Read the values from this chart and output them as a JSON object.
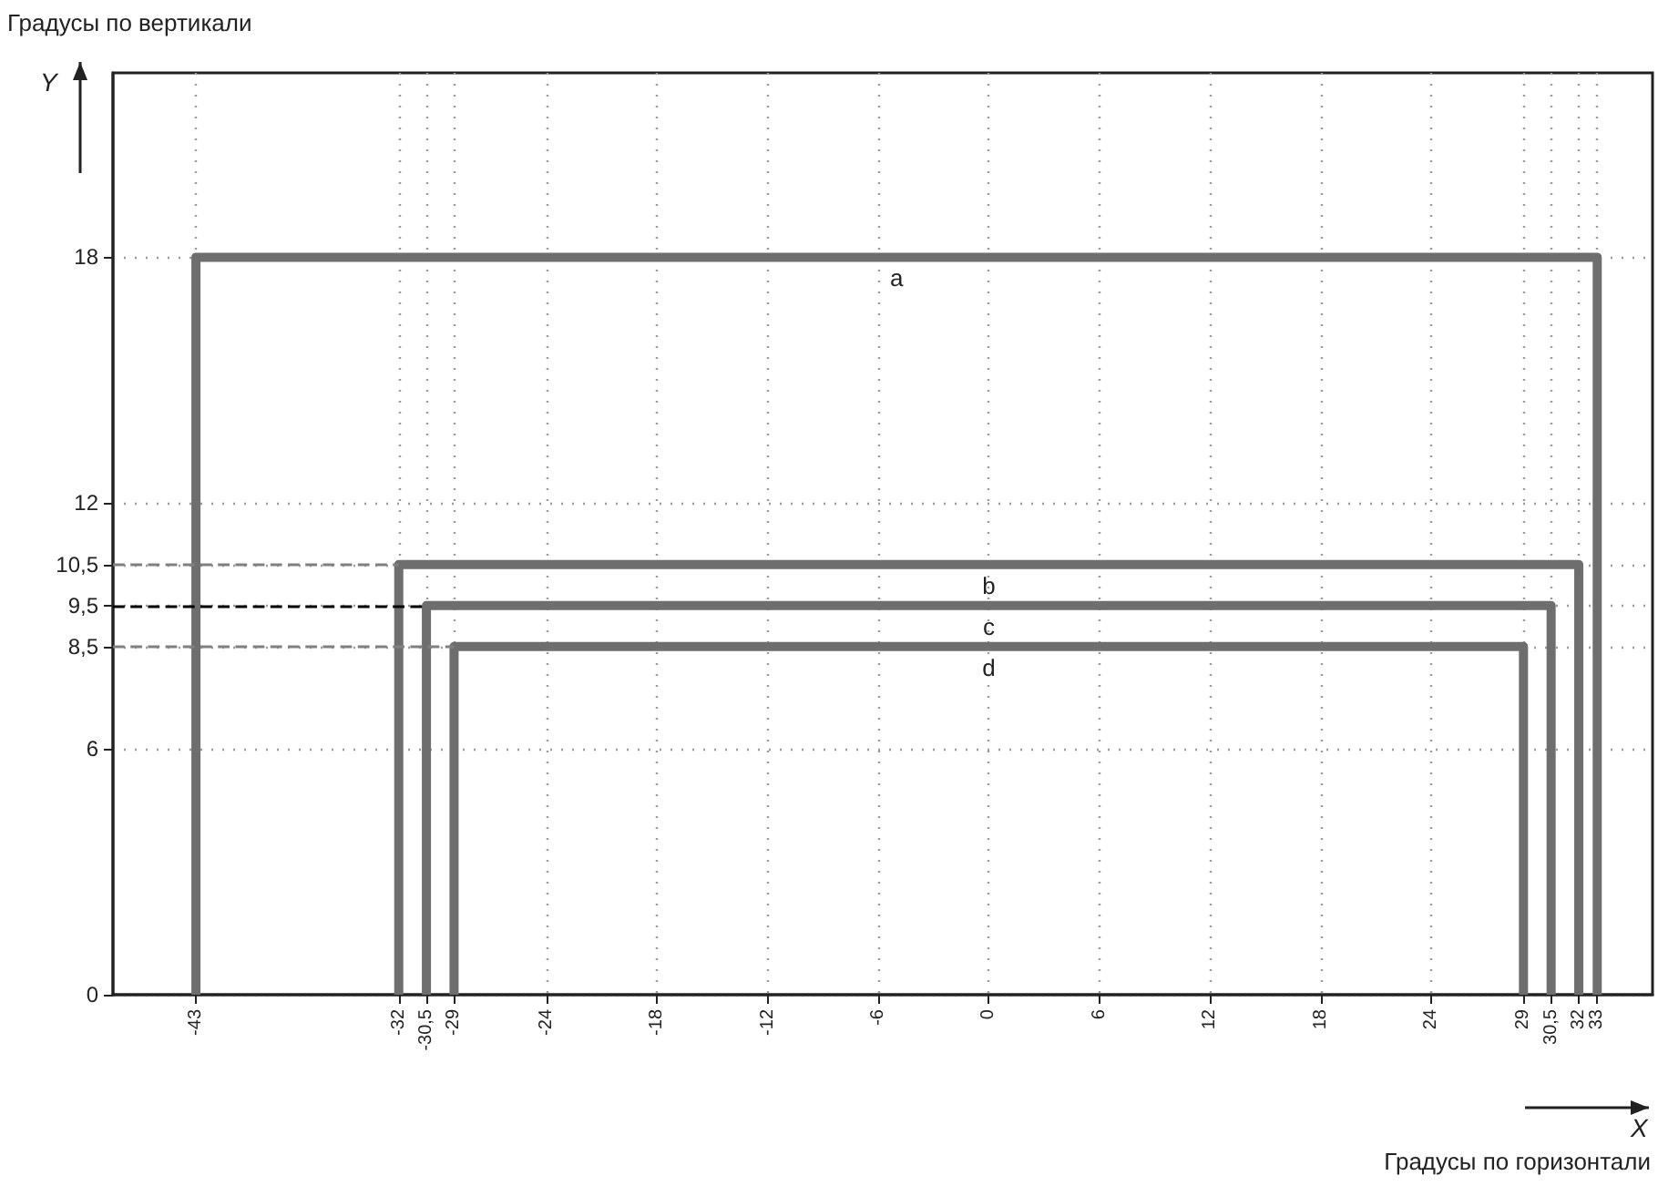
{
  "chart_data": {
    "type": "line",
    "xlabel": "Градусы по горизонтали",
    "ylabel": "Градусы по вертикали",
    "annotations": [
      "Y",
      "X"
    ],
    "xlim": [
      -47.5,
      36
    ],
    "ylim": [
      0,
      22.5
    ],
    "xticks": [
      -43,
      -32,
      {
        "value": -30.5,
        "label": "-30,5"
      },
      -29,
      -24,
      -18,
      -12,
      -6,
      0,
      6,
      12,
      18,
      24,
      29,
      {
        "value": 30.5,
        "label": "30,5"
      },
      32,
      33
    ],
    "yticks": [
      0,
      6,
      {
        "value": 8.5,
        "label": "8,5"
      },
      {
        "value": 9.5,
        "label": "9,5"
      },
      {
        "value": 10.5,
        "label": "10,5"
      },
      12,
      18
    ],
    "series": [
      {
        "name": "a",
        "color": "#6e6e6e",
        "x": [
          -43,
          -43,
          33,
          33
        ],
        "values": [
          0,
          18,
          18,
          0
        ]
      },
      {
        "name": "b",
        "color": "#6e6e6e",
        "x": [
          -32,
          -32,
          32,
          32
        ],
        "values": [
          0,
          10.5,
          10.5,
          0
        ]
      },
      {
        "name": "c",
        "color": "#6e6e6e",
        "x": [
          -30.5,
          -30.5,
          30.5,
          30.5
        ],
        "values": [
          0,
          9.5,
          9.5,
          0
        ]
      },
      {
        "name": "d",
        "color": "#6e6e6e",
        "x": [
          -29,
          -29,
          29,
          29
        ],
        "values": [
          0,
          8.5,
          8.5,
          0
        ]
      }
    ],
    "ref_lines": [
      {
        "axis": "y",
        "value": 10.5,
        "color": "#808080",
        "line_style": "dashed"
      },
      {
        "axis": "y",
        "value": 9.5,
        "color": "#000000",
        "line_style": "dashed"
      },
      {
        "axis": "y",
        "value": 8.5,
        "color": "#808080",
        "line_style": "dashed"
      }
    ],
    "grid": true,
    "line_style": "solid",
    "marker": "none",
    "legend": false
  }
}
